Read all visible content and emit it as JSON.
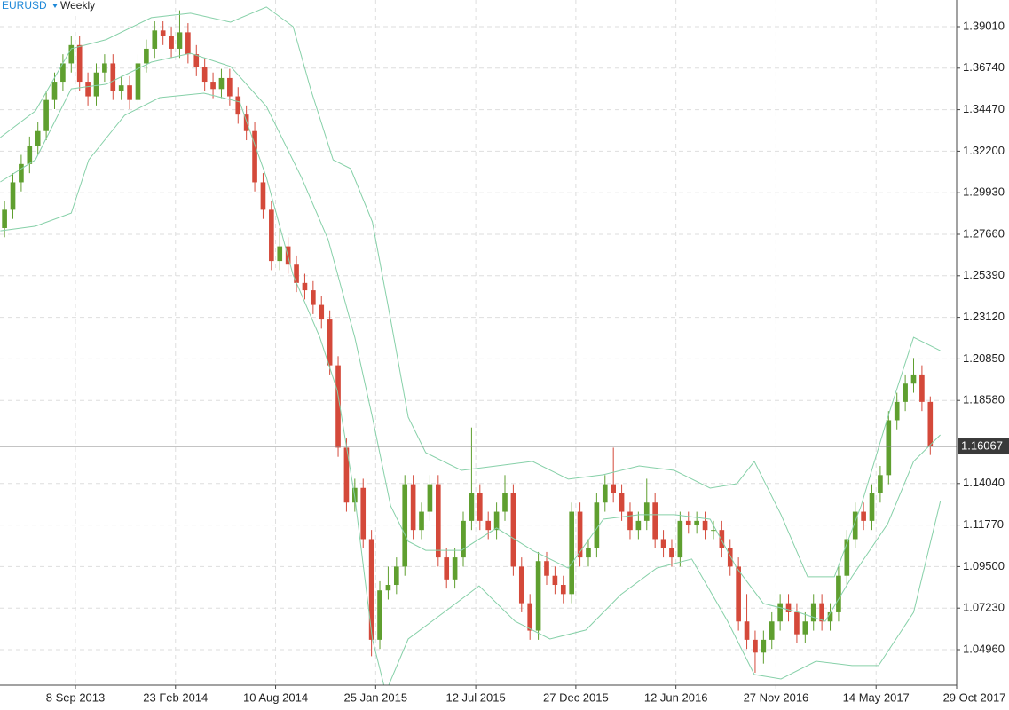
{
  "chart_data": {
    "type": "candlestick",
    "symbol": "EURUSD",
    "timeframe": "Weekly",
    "up_color": "#5f9f2f",
    "down_color": "#d4493a",
    "band_color": "#86d0a8",
    "grid": true,
    "ylim": [
      1.0302,
      1.40465
    ],
    "yticks": [
      {
        "value": 1.3901,
        "label": "1.39010"
      },
      {
        "value": 1.3674,
        "label": "1.36740"
      },
      {
        "value": 1.3447,
        "label": "1.34470"
      },
      {
        "value": 1.322,
        "label": "1.32200"
      },
      {
        "value": 1.2993,
        "label": "1.29930"
      },
      {
        "value": 1.2766,
        "label": "1.27660"
      },
      {
        "value": 1.2539,
        "label": "1.25390"
      },
      {
        "value": 1.2312,
        "label": "1.23120"
      },
      {
        "value": 1.2085,
        "label": "1.20850"
      },
      {
        "value": 1.1858,
        "label": "1.18580"
      },
      {
        "value": 1.1404,
        "label": "1.14040"
      },
      {
        "value": 1.1177,
        "label": "1.11770"
      },
      {
        "value": 1.095,
        "label": "1.09500"
      },
      {
        "value": 1.0723,
        "label": "1.07230"
      },
      {
        "value": 1.0496,
        "label": "1.04960"
      }
    ],
    "xlim": [
      -0.544,
      114.16
    ],
    "xticks": [
      {
        "value": 8.5,
        "label": "8 Sep 2013"
      },
      {
        "value": 20.5,
        "label": "23 Feb 2014"
      },
      {
        "value": 32.5,
        "label": "10 Aug 2014"
      },
      {
        "value": 44.5,
        "label": "25 Jan 2015"
      },
      {
        "value": 56.5,
        "label": "12 Jul 2015"
      },
      {
        "value": 68.5,
        "label": "27 Dec 2015"
      },
      {
        "value": 80.5,
        "label": "12 Jun 2016"
      },
      {
        "value": 92.5,
        "label": "27 Nov 2016"
      },
      {
        "value": 104.5,
        "label": "14 May 2017"
      },
      {
        "value": 116.5,
        "label": "29 Oct 2017"
      }
    ],
    "last_price": 1.16067,
    "open": [
      1.28,
      1.29,
      1.305,
      1.315,
      1.325,
      1.333,
      1.35,
      1.36,
      1.37,
      1.38,
      1.36,
      1.352,
      1.365,
      1.37,
      1.355,
      1.358,
      1.35,
      1.37,
      1.378,
      1.388,
      1.385,
      1.378,
      1.387,
      1.375,
      1.368,
      1.36,
      1.356,
      1.362,
      1.352,
      1.342,
      1.333,
      1.305,
      1.29,
      1.262,
      1.27,
      1.26,
      1.25,
      1.246,
      1.238,
      1.23,
      1.205,
      1.16,
      1.13,
      1.138,
      1.11,
      1.055,
      1.082,
      1.085,
      1.095,
      1.14,
      1.115,
      1.125,
      1.14,
      1.1,
      1.088,
      1.1,
      1.12,
      1.135,
      1.12,
      1.115,
      1.125,
      1.135,
      1.095,
      1.075,
      1.06,
      1.098,
      1.09,
      1.085,
      1.08,
      1.125,
      1.1,
      1.105,
      1.13,
      1.14,
      1.135,
      1.125,
      1.115,
      1.12,
      1.13,
      1.11,
      1.105,
      1.1,
      1.12,
      1.118,
      1.12,
      1.115,
      1.115,
      1.105,
      1.095,
      1.065,
      1.055,
      1.048,
      1.055,
      1.065,
      1.075,
      1.07,
      1.058,
      1.065,
      1.075,
      1.065,
      1.07,
      1.09,
      1.11,
      1.125,
      1.12,
      1.135,
      1.145,
      1.175,
      1.185,
      1.195,
      1.2,
      1.185
    ],
    "high": [
      1.295,
      1.31,
      1.32,
      1.33,
      1.338,
      1.355,
      1.365,
      1.375,
      1.385,
      1.385,
      1.365,
      1.37,
      1.375,
      1.375,
      1.363,
      1.363,
      1.375,
      1.383,
      1.393,
      1.393,
      1.39,
      1.399,
      1.392,
      1.38,
      1.373,
      1.365,
      1.367,
      1.367,
      1.357,
      1.347,
      1.338,
      1.31,
      1.295,
      1.28,
      1.275,
      1.265,
      1.255,
      1.251,
      1.243,
      1.235,
      1.21,
      1.165,
      1.143,
      1.143,
      1.115,
      1.087,
      1.095,
      1.1,
      1.145,
      1.145,
      1.13,
      1.145,
      1.145,
      1.105,
      1.105,
      1.125,
      1.171,
      1.14,
      1.125,
      1.13,
      1.145,
      1.14,
      1.1,
      1.08,
      1.103,
      1.103,
      1.095,
      1.09,
      1.13,
      1.13,
      1.11,
      1.135,
      1.145,
      1.16,
      1.14,
      1.13,
      1.125,
      1.143,
      1.135,
      1.115,
      1.11,
      1.125,
      1.125,
      1.125,
      1.125,
      1.12,
      1.12,
      1.11,
      1.1,
      1.08,
      1.06,
      1.06,
      1.07,
      1.08,
      1.08,
      1.075,
      1.07,
      1.08,
      1.08,
      1.075,
      1.095,
      1.115,
      1.13,
      1.13,
      1.14,
      1.15,
      1.18,
      1.19,
      1.2,
      1.209,
      1.205,
      1.188
    ],
    "low": [
      1.275,
      1.285,
      1.3,
      1.31,
      1.32,
      1.328,
      1.345,
      1.355,
      1.365,
      1.355,
      1.347,
      1.347,
      1.36,
      1.35,
      1.35,
      1.345,
      1.345,
      1.365,
      1.373,
      1.38,
      1.373,
      1.373,
      1.37,
      1.363,
      1.355,
      1.351,
      1.351,
      1.347,
      1.337,
      1.328,
      1.3,
      1.285,
      1.257,
      1.257,
      1.255,
      1.245,
      1.241,
      1.233,
      1.225,
      1.2,
      1.155,
      1.125,
      1.125,
      1.105,
      1.046,
      1.05,
      1.077,
      1.08,
      1.09,
      1.11,
      1.11,
      1.12,
      1.095,
      1.083,
      1.083,
      1.095,
      1.115,
      1.115,
      1.11,
      1.11,
      1.12,
      1.09,
      1.07,
      1.055,
      1.055,
      1.085,
      1.08,
      1.075,
      1.075,
      1.095,
      1.095,
      1.1,
      1.125,
      1.13,
      1.12,
      1.11,
      1.11,
      1.115,
      1.105,
      1.1,
      1.095,
      1.095,
      1.113,
      1.113,
      1.11,
      1.11,
      1.1,
      1.09,
      1.06,
      1.05,
      1.037,
      1.042,
      1.05,
      1.06,
      1.065,
      1.053,
      1.053,
      1.06,
      1.06,
      1.06,
      1.065,
      1.085,
      1.105,
      1.115,
      1.115,
      1.13,
      1.14,
      1.17,
      1.18,
      1.19,
      1.18,
      1.156
    ],
    "close": [
      1.29,
      1.305,
      1.315,
      1.325,
      1.333,
      1.35,
      1.36,
      1.37,
      1.38,
      1.36,
      1.352,
      1.365,
      1.37,
      1.355,
      1.358,
      1.35,
      1.37,
      1.378,
      1.388,
      1.385,
      1.378,
      1.387,
      1.375,
      1.368,
      1.36,
      1.356,
      1.362,
      1.352,
      1.342,
      1.333,
      1.305,
      1.29,
      1.262,
      1.27,
      1.26,
      1.25,
      1.246,
      1.238,
      1.23,
      1.205,
      1.16,
      1.13,
      1.138,
      1.11,
      1.055,
      1.082,
      1.085,
      1.095,
      1.14,
      1.115,
      1.125,
      1.14,
      1.1,
      1.088,
      1.1,
      1.12,
      1.135,
      1.12,
      1.115,
      1.125,
      1.135,
      1.095,
      1.075,
      1.06,
      1.098,
      1.09,
      1.085,
      1.08,
      1.125,
      1.1,
      1.105,
      1.13,
      1.14,
      1.135,
      1.125,
      1.115,
      1.12,
      1.13,
      1.11,
      1.105,
      1.1,
      1.12,
      1.118,
      1.12,
      1.115,
      1.115,
      1.105,
      1.095,
      1.065,
      1.055,
      1.048,
      1.055,
      1.065,
      1.075,
      1.07,
      1.058,
      1.065,
      1.075,
      1.065,
      1.07,
      1.09,
      1.11,
      1.125,
      1.12,
      1.135,
      1.145,
      1.175,
      1.185,
      1.195,
      1.2,
      1.185,
      1.161
    ],
    "bands": {
      "upper": {
        "x": [
          -0.5,
          3.7,
          8.0,
          12.2,
          17.6,
          22.3,
          27.1,
          31.4,
          34.6,
          36.7,
          39.4,
          41.5,
          44.1,
          46.3,
          48.4,
          50.5,
          54.8,
          59.0,
          63.3,
          67.6,
          71.8,
          76.1,
          80.3,
          84.6,
          87.8,
          89.9,
          93.1,
          96.3,
          99.5,
          102.7,
          105.9,
          109.0,
          112.2
        ],
        "values": [
          1.3295,
          1.344,
          1.378,
          1.383,
          1.395,
          1.3974,
          1.3925,
          1.4008,
          1.3901,
          1.3561,
          1.3173,
          1.3125,
          1.2834,
          1.23,
          1.1767,
          1.1573,
          1.1476,
          1.15,
          1.1525,
          1.1428,
          1.1452,
          1.15,
          1.1476,
          1.1379,
          1.1403,
          1.1525,
          1.1234,
          1.0894,
          1.0894,
          1.1282,
          1.1767,
          1.2203,
          1.213
        ]
      },
      "middle": {
        "x": [
          -0.5,
          3.7,
          8.0,
          12.2,
          17.6,
          22.3,
          27.1,
          31.4,
          35.6,
          38.8,
          42.0,
          44.1,
          46.3,
          48.4,
          50.5,
          54.8,
          59.0,
          63.3,
          67.6,
          71.8,
          76.1,
          80.3,
          84.6,
          87.8,
          91.0,
          95.2,
          98.4,
          101.6,
          105.9,
          109.0,
          112.2
        ],
        "values": [
          1.3052,
          1.3173,
          1.3561,
          1.3586,
          1.3707,
          1.3755,
          1.3683,
          1.3465,
          1.3077,
          1.2737,
          1.2203,
          1.1767,
          1.1282,
          1.1088,
          1.1039,
          1.1039,
          1.1161,
          1.1039,
          1.0942,
          1.1209,
          1.1234,
          1.1234,
          1.1209,
          1.0942,
          1.0748,
          1.07,
          1.0651,
          1.0894,
          1.1185,
          1.1525,
          1.167
        ]
      },
      "lower": {
        "x": [
          -0.5,
          3.7,
          8.0,
          10.1,
          14.4,
          18.6,
          23.9,
          28.2,
          31.4,
          34.6,
          37.8,
          39.9,
          42.0,
          44.1,
          45.7,
          48.4,
          52.7,
          56.9,
          61.2,
          65.4,
          69.7,
          73.9,
          78.2,
          82.4,
          86.7,
          89.9,
          93.1,
          97.3,
          101.6,
          104.8,
          109.0,
          112.2
        ],
        "values": [
          1.2785,
          1.281,
          1.2882,
          1.3173,
          1.3416,
          1.3513,
          1.3537,
          1.3489,
          1.3077,
          1.2543,
          1.2203,
          1.1912,
          1.133,
          1.0554,
          1.0263,
          1.0554,
          1.07,
          1.0845,
          1.0651,
          1.0554,
          1.0603,
          1.0797,
          1.0942,
          1.0991,
          1.0651,
          1.036,
          1.0336,
          1.0433,
          1.0409,
          1.0409,
          1.07,
          1.1306
        ]
      }
    }
  }
}
